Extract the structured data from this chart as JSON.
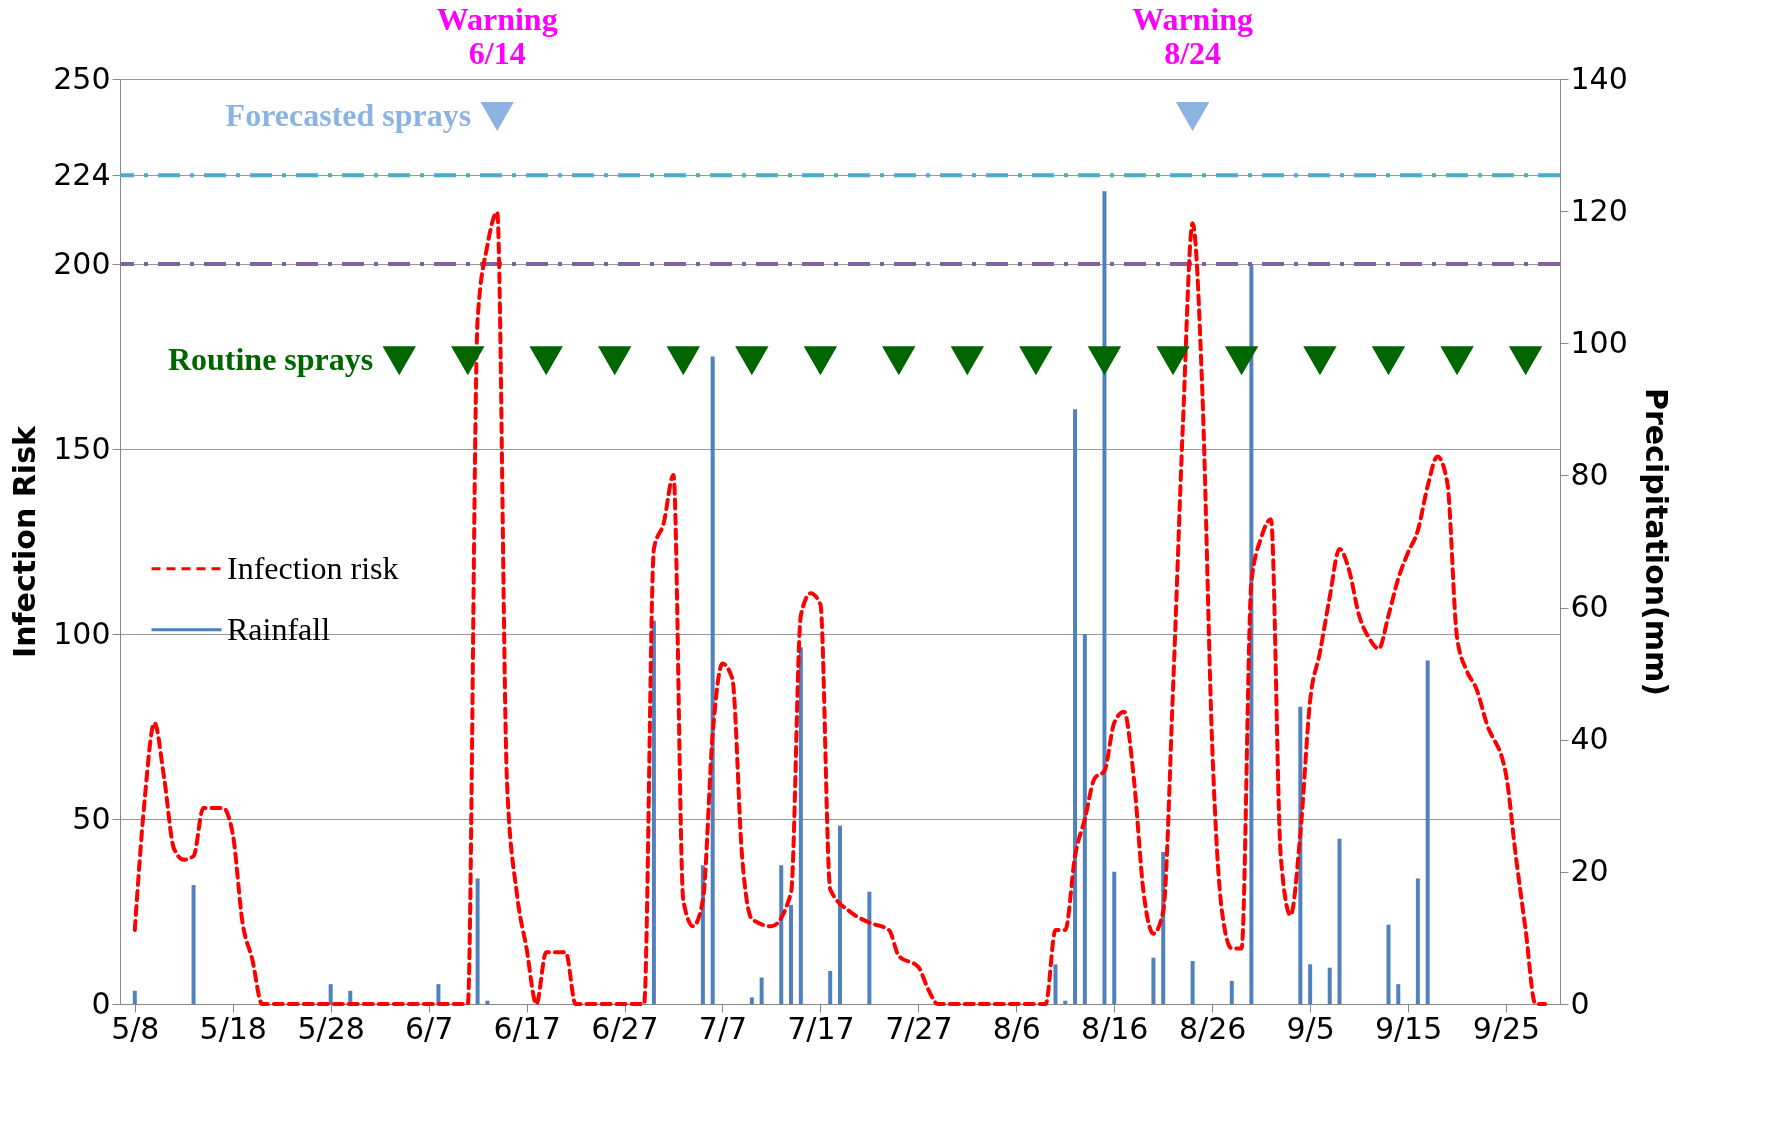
{
  "chart_data": {
    "type": "line",
    "ylabel": "Infection Risk",
    "y2label": "Precipitation(mm)",
    "xlim": [
      "--05-07",
      "--09-30"
    ],
    "xticks": [
      {
        "value": "--05-08",
        "label": "5/8"
      },
      {
        "value": "--05-18",
        "label": "5/18"
      },
      {
        "value": "--05-28",
        "label": "5/28"
      },
      {
        "value": "--06-07",
        "label": "6/7"
      },
      {
        "value": "--06-17",
        "label": "6/17"
      },
      {
        "value": "--06-27",
        "label": "6/27"
      },
      {
        "value": "--07-07",
        "label": "7/7"
      },
      {
        "value": "--07-17",
        "label": "7/17"
      },
      {
        "value": "--07-27",
        "label": "7/27"
      },
      {
        "value": "--08-06",
        "label": "8/6"
      },
      {
        "value": "--08-16",
        "label": "8/16"
      },
      {
        "value": "--08-26",
        "label": "8/26"
      },
      {
        "value": "--09-05",
        "label": "9/5"
      },
      {
        "value": "--09-15",
        "label": "9/15"
      },
      {
        "value": "--09-25",
        "label": "9/25"
      }
    ],
    "ylim": [
      0,
      250
    ],
    "yticks": [
      0,
      50,
      100,
      150,
      200,
      224,
      250
    ],
    "y2lim": [
      0,
      140
    ],
    "y2ticks": [
      0,
      20,
      40,
      60,
      80,
      100,
      120,
      140
    ],
    "grid": "y",
    "legend": "left",
    "ref_lines": [
      {
        "axis": "y",
        "value": 224,
        "color": "#4bacc6",
        "line_style": "dashed"
      },
      {
        "axis": "y",
        "value": 200,
        "color": "#8064a2",
        "line_style": "dashed"
      }
    ],
    "annotations": [
      {
        "text": "Warning\n6/14",
        "x": "--06-14",
        "y": 240
      },
      {
        "text": "Warning\n8/24",
        "x": "--08-24",
        "y": 240
      }
    ],
    "series": [
      {
        "name": "Infection risk",
        "color": "#ff0000",
        "line_style": "dashed",
        "x": [
          "--05-08",
          "--05-09",
          "--05-10",
          "--05-11",
          "--05-12",
          "--05-13",
          "--05-14",
          "--05-15",
          "--05-17",
          "--05-18",
          "--05-19",
          "--05-20",
          "--05-21",
          "--06-11",
          "--06-12",
          "--06-13",
          "--06-14",
          "--06-15",
          "--06-16",
          "--06-17",
          "--06-18",
          "--06-19",
          "--06-20",
          "--06-21",
          "--06-22",
          "--06-29",
          "--06-30",
          "--07-01",
          "--07-02",
          "--07-03",
          "--07-04",
          "--07-05",
          "--07-06",
          "--07-07",
          "--07-08",
          "--07-09",
          "--07-10",
          "--07-12",
          "--07-14",
          "--07-15",
          "--07-16",
          "--07-17",
          "--07-18",
          "--07-20",
          "--07-22",
          "--07-24",
          "--07-25",
          "--07-27",
          "--07-28",
          "--07-29",
          "--08-09",
          "--08-10",
          "--08-11",
          "--08-12",
          "--08-13",
          "--08-14",
          "--08-15",
          "--08-16",
          "--08-17",
          "--08-18",
          "--08-19",
          "--08-20",
          "--08-21",
          "--08-22",
          "--08-23",
          "--08-24",
          "--08-25",
          "--08-26",
          "--08-27",
          "--08-28",
          "--08-29",
          "--08-30",
          "--08-31",
          "--09-01",
          "--09-02",
          "--09-03",
          "--09-04",
          "--09-05",
          "--09-06",
          "--09-07",
          "--09-08",
          "--09-09",
          "--09-10",
          "--09-11",
          "--09-12",
          "--09-13",
          "--09-14",
          "--09-15",
          "--09-16",
          "--09-17",
          "--09-18",
          "--09-19",
          "--09-20",
          "--09-21",
          "--09-22",
          "--09-23",
          "--09-25",
          "--09-26",
          "--09-27",
          "--09-28",
          "--09-29"
        ],
        "values": [
          20,
          55,
          76,
          61,
          42,
          39,
          40,
          53,
          53,
          46,
          22,
          12,
          0,
          0,
          185,
          205,
          214,
          60,
          30,
          15,
          0,
          14,
          14,
          14,
          0,
          0,
          123,
          130,
          143,
          28,
          21,
          28,
          73,
          92,
          88,
          40,
          23,
          21,
          30,
          105,
          111,
          108,
          31,
          25,
          22,
          20,
          13,
          10,
          4,
          0,
          0,
          20,
          20,
          40,
          50,
          61,
          63,
          76,
          79,
          61,
          30,
          19,
          25,
          85,
          156,
          211,
          165,
          70,
          25,
          15,
          15,
          114,
          126,
          131,
          40,
          24,
          46,
          82,
          95,
          110,
          123,
          117,
          105,
          99,
          96,
          105,
          115,
          122,
          128,
          140,
          148,
          141,
          99,
          90,
          85,
          76,
          62,
          40,
          20,
          0,
          0
        ]
      },
      {
        "name": "Rainfall",
        "type": "bar",
        "axis": "y2",
        "color": "#4f81bd",
        "x": [
          "--05-08",
          "--05-14",
          "--05-28",
          "--05-30",
          "--06-08",
          "--06-12",
          "--06-13",
          "--06-30",
          "--07-05",
          "--07-06",
          "--07-10",
          "--07-11",
          "--07-13",
          "--07-14",
          "--07-15",
          "--07-18",
          "--07-19",
          "--07-22",
          "--08-10",
          "--08-11",
          "--08-12",
          "--08-13",
          "--08-15",
          "--08-16",
          "--08-20",
          "--08-21",
          "--08-24",
          "--08-28",
          "--08-30",
          "--09-04",
          "--09-05",
          "--09-07",
          "--09-08",
          "--09-13",
          "--09-14",
          "--09-16",
          "--09-17"
        ],
        "values": [
          2,
          18,
          3,
          2,
          3,
          19,
          0.5,
          58,
          21,
          98,
          1,
          4,
          21,
          15,
          54,
          5,
          27,
          17,
          6,
          0.5,
          90,
          56,
          123,
          20,
          7,
          23,
          6.5,
          3.5,
          112,
          45,
          6,
          5.5,
          25,
          12,
          3,
          19,
          52
        ]
      },
      {
        "name": "Routine sprays",
        "type": "scatter",
        "marker": "triangle",
        "color": "#006600",
        "x": [
          "--06-04",
          "--06-11",
          "--06-19",
          "--06-26",
          "--07-03",
          "--07-10",
          "--07-17",
          "--07-25",
          "--08-01",
          "--08-08",
          "--08-15",
          "--08-22",
          "--08-29",
          "--09-06",
          "--09-13",
          "--09-20",
          "--09-27"
        ],
        "values": [
          174,
          174,
          174,
          174,
          174,
          174,
          174,
          174,
          174,
          174,
          174,
          174,
          174,
          174,
          174,
          174,
          174
        ]
      },
      {
        "name": "Forecasted sprays",
        "type": "scatter",
        "marker": "triangle",
        "color": "#8db3e2",
        "x": [
          "--06-14",
          "--08-24"
        ],
        "values": [
          240,
          240
        ]
      }
    ]
  }
}
